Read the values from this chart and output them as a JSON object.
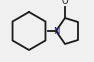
{
  "bg_color": "#f0f0f0",
  "line_color": "#1a1a1a",
  "n_label_color": "#1a1a99",
  "o_label_color": "#1a1a1a",
  "line_width": 1.3,
  "o_label": "O",
  "n_label": "N",
  "figsize": [
    0.94,
    0.62
  ],
  "dpi": 100
}
